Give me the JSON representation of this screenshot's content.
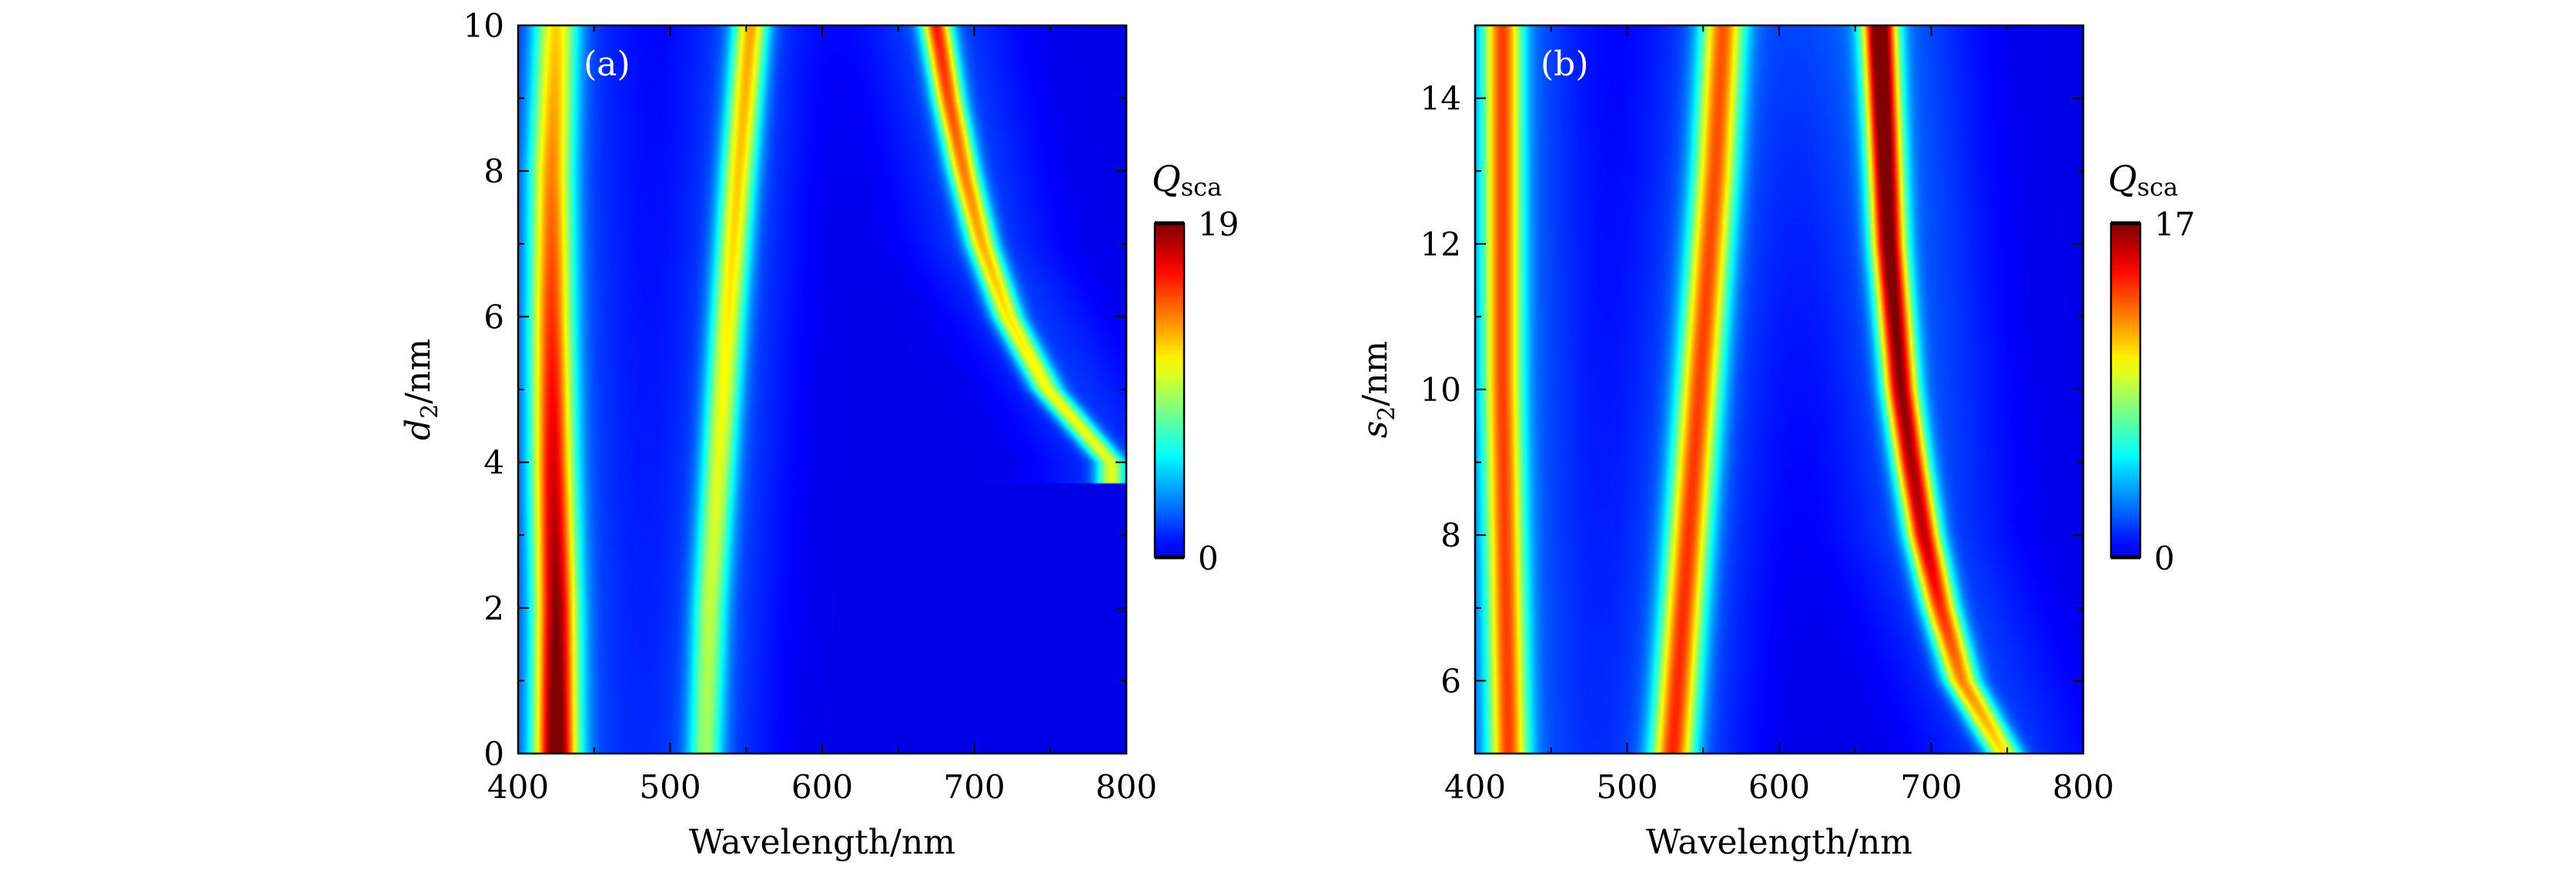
{
  "chart_data": [
    {
      "type": "heatmap",
      "panel_label": "(a)",
      "xlabel": "Wavelength/nm",
      "ylabel_main": "d",
      "ylabel_sub": "2",
      "ylabel_unit": "/nm",
      "xlim": [
        400,
        800
      ],
      "ylim": [
        0,
        10
      ],
      "x_ticks": [
        400,
        500,
        600,
        700,
        800
      ],
      "y_ticks": [
        0,
        2,
        4,
        6,
        8,
        10
      ],
      "colorbar": {
        "label_main": "Q",
        "label_sub": "sca",
        "min": 0,
        "max": 19,
        "min_label": "0",
        "max_label": "19",
        "colormap": "jet"
      },
      "modes": [
        {
          "name": "mode-1",
          "points": [
            [
              0,
              425
            ],
            [
              2,
              425
            ],
            [
              4,
              423
            ],
            [
              6,
              422
            ],
            [
              8,
              422
            ],
            [
              10,
              425
            ]
          ],
          "peak": [
            [
              0,
              18
            ],
            [
              10,
              10
            ]
          ],
          "width": 10
        },
        {
          "name": "mode-2",
          "points": [
            [
              0,
              523
            ],
            [
              2,
              526
            ],
            [
              4,
              532
            ],
            [
              6,
              538
            ],
            [
              8,
              545
            ],
            [
              10,
              553
            ]
          ],
          "peak": [
            [
              0,
              7
            ],
            [
              10,
              11
            ]
          ],
          "width": 8
        },
        {
          "name": "mode-3",
          "points": [
            [
              4,
              790
            ],
            [
              5,
              748
            ],
            [
              6,
              722
            ],
            [
              7,
              705
            ],
            [
              8,
              693
            ],
            [
              9,
              683
            ],
            [
              10,
              675
            ]
          ],
          "peak": [
            [
              4,
              9
            ],
            [
              6,
              10
            ],
            [
              10,
              14
            ]
          ],
          "width": 7
        }
      ],
      "background": [
        {
          "name": "broad-1",
          "points": [
            [
              0,
              425
            ],
            [
              10,
              425
            ]
          ],
          "peak": [
            [
              0,
              2.5
            ],
            [
              10,
              2
            ]
          ],
          "width": 35
        },
        {
          "name": "broad-2",
          "points": [
            [
              0,
              525
            ],
            [
              10,
              550
            ]
          ],
          "peak": [
            [
              0,
              2
            ],
            [
              10,
              2
            ]
          ],
          "width": 30
        },
        {
          "name": "broad-3",
          "points": [
            [
              4,
              790
            ],
            [
              7,
              705
            ],
            [
              10,
              675
            ]
          ],
          "peak": [
            [
              4,
              1.5
            ],
            [
              10,
              2
            ]
          ],
          "width": 35
        }
      ]
    },
    {
      "type": "heatmap",
      "panel_label": "(b)",
      "xlabel": "Wavelength/nm",
      "ylabel_main": "s",
      "ylabel_sub": "2",
      "ylabel_unit": "/nm",
      "xlim": [
        400,
        800
      ],
      "ylim": [
        5,
        15
      ],
      "x_ticks": [
        400,
        500,
        600,
        700,
        800
      ],
      "y_ticks": [
        6,
        8,
        10,
        12,
        14
      ],
      "colorbar": {
        "label_main": "Q",
        "label_sub": "sca",
        "min": 0,
        "max": 17,
        "min_label": "0",
        "max_label": "17",
        "colormap": "jet"
      },
      "modes": [
        {
          "name": "mode-1",
          "points": [
            [
              5,
              422
            ],
            [
              10,
              418
            ],
            [
              15,
              418
            ]
          ],
          "peak": [
            [
              5,
              11
            ],
            [
              15,
              11
            ]
          ],
          "width": 9
        },
        {
          "name": "mode-2",
          "points": [
            [
              5,
              530
            ],
            [
              7,
              537
            ],
            [
              9,
              544
            ],
            [
              11,
              551
            ],
            [
              13,
              558
            ],
            [
              15,
              563
            ]
          ],
          "peak": [
            [
              5,
              12
            ],
            [
              15,
              11
            ]
          ],
          "width": 10
        },
        {
          "name": "mode-3",
          "points": [
            [
              5,
              748
            ],
            [
              6,
              720
            ],
            [
              7,
              706
            ],
            [
              8,
              695
            ],
            [
              9,
              687
            ],
            [
              10,
              680
            ],
            [
              12,
              672
            ],
            [
              15,
              666
            ]
          ],
          "peak": [
            [
              5,
              9
            ],
            [
              8,
              14
            ],
            [
              15,
              17
            ]
          ],
          "width": 8
        }
      ],
      "background": [
        {
          "name": "broad-1",
          "points": [
            [
              5,
              420
            ],
            [
              15,
              418
            ]
          ],
          "peak": [
            [
              5,
              2.5
            ],
            [
              15,
              2.5
            ]
          ],
          "width": 35
        },
        {
          "name": "broad-2",
          "points": [
            [
              5,
              530
            ],
            [
              15,
              563
            ]
          ],
          "peak": [
            [
              5,
              2
            ],
            [
              15,
              2
            ]
          ],
          "width": 35
        },
        {
          "name": "broad-3",
          "points": [
            [
              5,
              748
            ],
            [
              8,
              695
            ],
            [
              15,
              666
            ]
          ],
          "peak": [
            [
              5,
              1.5
            ],
            [
              15,
              2.5
            ]
          ],
          "width": 40
        }
      ]
    }
  ]
}
